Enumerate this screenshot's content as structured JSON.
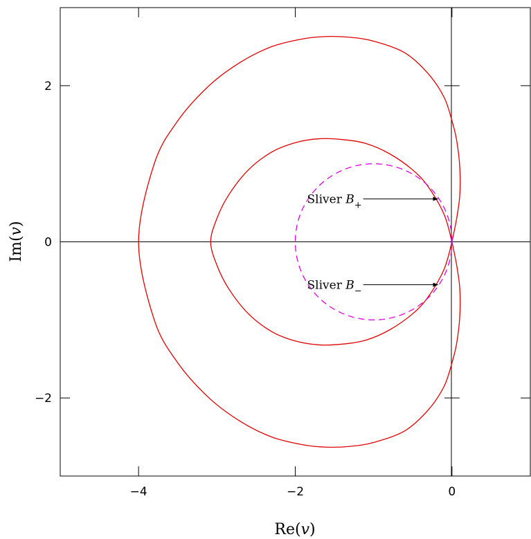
{
  "chart_data": {
    "type": "line",
    "title": "",
    "xlabel": "Re(v)",
    "ylabel": "Im(v)",
    "xlim": [
      -5,
      1
    ],
    "ylim": [
      -3,
      3
    ],
    "grid": false,
    "x_ticks": [
      -4,
      -2,
      0
    ],
    "x_tick_labels": [
      "−4",
      "−2",
      "0"
    ],
    "y_ticks": [
      -2,
      0,
      2
    ],
    "y_tick_labels": [
      "−2",
      "0",
      "2"
    ],
    "series": [
      {
        "style": "solid",
        "color": "#e00000",
        "x": [
          0.0,
          0.06,
          0.1,
          0.1,
          0.06,
          0.0,
          -0.1,
          -0.3,
          -0.6,
          -1.0,
          -1.3,
          -1.6,
          -1.9,
          -2.3,
          -2.7,
          -3.1,
          -3.5,
          -3.8,
          -4.0,
          -3.8,
          -3.5,
          -3.1,
          -2.7,
          -2.3,
          -1.9,
          -1.6,
          -1.3,
          -1.0,
          -0.6,
          -0.3,
          -0.1,
          0.0,
          0.06,
          0.1,
          0.1,
          0.06,
          0.0
        ],
        "y": [
          0.0,
          0.3,
          0.6,
          0.95,
          1.3,
          1.55,
          1.85,
          2.15,
          2.42,
          2.57,
          2.62,
          2.63,
          2.6,
          2.5,
          2.3,
          2.0,
          1.55,
          1.0,
          0.0,
          -1.0,
          -1.55,
          -2.0,
          -2.3,
          -2.5,
          -2.6,
          -2.63,
          -2.62,
          -2.57,
          -2.42,
          -2.15,
          -1.85,
          -1.55,
          -1.3,
          -0.95,
          -0.6,
          -0.3,
          0.0
        ]
      },
      {
        "style": "solid",
        "color": "#e00000",
        "x": [
          0.0,
          -0.1,
          -0.3,
          -0.5,
          -0.8,
          -1.1,
          -1.4,
          -1.7,
          -2.0,
          -2.3,
          -2.6,
          -2.85,
          -3.0,
          -3.08,
          -3.0,
          -2.85,
          -2.6,
          -2.3,
          -2.0,
          -1.7,
          -1.4,
          -1.1,
          -0.8,
          -0.5,
          -0.3,
          -0.1,
          0.0
        ],
        "y": [
          0.0,
          0.35,
          0.7,
          0.92,
          1.13,
          1.26,
          1.31,
          1.32,
          1.27,
          1.15,
          0.92,
          0.6,
          0.3,
          0.0,
          -0.3,
          -0.6,
          -0.92,
          -1.15,
          -1.27,
          -1.32,
          -1.31,
          -1.26,
          -1.13,
          -0.92,
          -0.7,
          -0.35,
          0.0
        ]
      },
      {
        "style": "dashed",
        "color": "#e000e0",
        "shape": "circle",
        "center": [
          -1,
          0
        ],
        "radius": 1
      }
    ],
    "annotations": [
      {
        "prefix": "Sliver ",
        "var": "B",
        "sub": "+",
        "text_at": [
          -1.5,
          0.55
        ],
        "arrow_to": [
          -0.18,
          0.55
        ]
      },
      {
        "prefix": "Sliver ",
        "var": "B",
        "sub": "−",
        "text_at": [
          -1.5,
          -0.55
        ],
        "arrow_to": [
          -0.18,
          -0.55
        ]
      }
    ]
  }
}
